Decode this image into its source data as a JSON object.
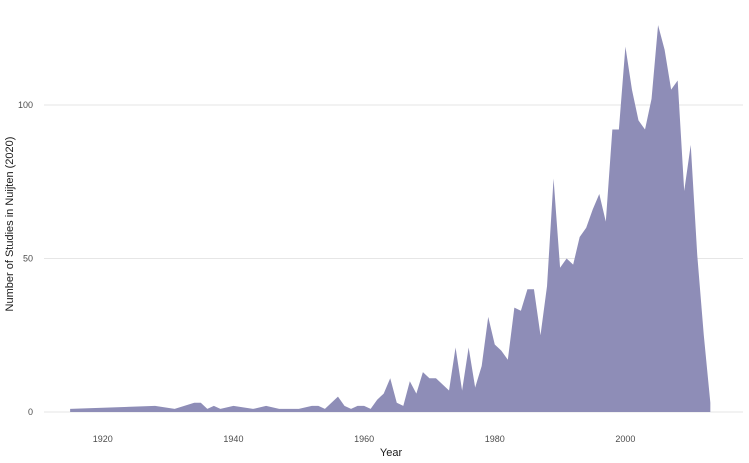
{
  "chart_data": {
    "type": "area",
    "title": "",
    "xlabel": "Year",
    "ylabel": "Number of Studies in Nuijten (2020)",
    "xlim": [
      1911,
      2018
    ],
    "ylim": [
      0,
      130
    ],
    "x_ticks": [
      1920,
      1940,
      1960,
      1980,
      2000
    ],
    "y_ticks": [
      0,
      50,
      100
    ],
    "grid": true,
    "legend": "none",
    "colors": {
      "fill": "#8e8db7",
      "grid": "#e6e6e6",
      "text": "#4d4d4d"
    },
    "series": [
      {
        "x": [
          1915,
          1928,
          1931,
          1934,
          1935,
          1936,
          1937,
          1938,
          1940,
          1943,
          1945,
          1947,
          1950,
          1952,
          1953,
          1954,
          1956,
          1957,
          1958,
          1959,
          1960,
          1961,
          1962,
          1963,
          1964,
          1965,
          1966,
          1967,
          1968,
          1969,
          1970,
          1971,
          1972,
          1973,
          1974,
          1975,
          1976,
          1977,
          1978,
          1979,
          1980,
          1981,
          1982,
          1983,
          1984,
          1985,
          1986,
          1987,
          1988,
          1989,
          1990,
          1991,
          1992,
          1993,
          1994,
          1995,
          1996,
          1997,
          1998,
          1999,
          2000,
          2001,
          2002,
          2003,
          2004,
          2005,
          2006,
          2007,
          2008,
          2009,
          2010,
          2011,
          2012,
          2013
        ],
        "values": [
          1,
          2,
          1,
          3,
          3,
          1,
          2,
          1,
          2,
          1,
          2,
          1,
          1,
          2,
          2,
          1,
          5,
          2,
          1,
          2,
          2,
          1,
          4,
          6,
          11,
          3,
          2,
          10,
          6,
          13,
          11,
          11,
          9,
          7,
          21,
          7,
          21,
          8,
          15,
          31,
          22,
          20,
          17,
          34,
          33,
          40,
          40,
          25,
          41,
          76,
          47,
          50,
          48,
          57,
          60,
          66,
          71,
          62,
          92,
          92,
          119,
          105,
          95,
          92,
          102,
          126,
          118,
          105,
          108,
          72,
          87,
          51,
          25,
          3
        ]
      }
    ]
  }
}
